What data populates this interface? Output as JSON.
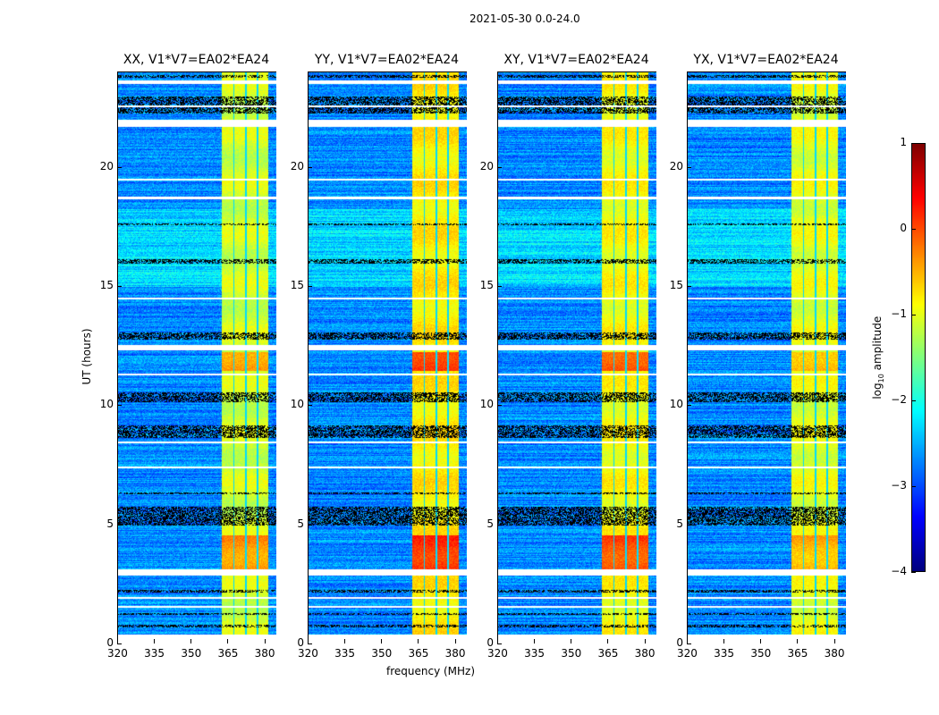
{
  "figure_title": "2021-05-30 0.0-24.0",
  "chart_data": [
    {
      "type": "heatmap",
      "title": "XX, V1*V7=EA02*EA24",
      "band_level": -1.1,
      "hot_level": -0.35,
      "band_start": 362
    },
    {
      "type": "heatmap",
      "title": "YY, V1*V7=EA02*EA24",
      "band_level": -0.8,
      "hot_level": 0.15,
      "band_start": 362
    },
    {
      "type": "heatmap",
      "title": "XY, V1*V7=EA02*EA24",
      "band_level": -0.9,
      "hot_level": 0.0,
      "band_start": 362
    },
    {
      "type": "heatmap",
      "title": "YX, V1*V7=EA02*EA24",
      "band_level": -1.0,
      "hot_level": -0.5,
      "band_start": 362
    }
  ],
  "shared": {
    "xlabel": "frequency (MHz)",
    "ylabel": "UT (hours)",
    "xlim": [
      320,
      384.5
    ],
    "ylim": [
      0,
      24
    ],
    "xticks": [
      "320",
      "335",
      "350",
      "365",
      "380"
    ],
    "xtick_values": [
      320,
      335,
      350,
      365,
      380
    ],
    "yticks": [
      "0",
      "5",
      "10",
      "15",
      "20"
    ],
    "ytick_values": [
      0,
      5,
      10,
      15,
      20
    ],
    "background_level": -2.7,
    "band_channel_edges_mhz": [
      367,
      372,
      376.5
    ],
    "band_end": 381,
    "hot_times_hours": [
      [
        3.0,
        4.6
      ],
      [
        11.5,
        12.3
      ]
    ],
    "flagged_times_hours": [
      [
        0,
        0.45
      ],
      [
        1.55,
        1.62
      ],
      [
        1.95,
        2.02
      ],
      [
        2.9,
        3.15
      ],
      [
        7.4,
        7.48
      ],
      [
        8.45,
        8.52
      ],
      [
        11.3,
        11.38
      ],
      [
        12.35,
        12.6
      ],
      [
        14.5,
        14.58
      ],
      [
        18.7,
        18.8
      ],
      [
        19.5,
        19.56
      ],
      [
        21.75,
        22.05
      ],
      [
        22.55,
        22.62
      ],
      [
        23.55,
        23.7
      ]
    ],
    "dropout_times_hours": [
      [
        0.75,
        0.85
      ],
      [
        1.25,
        1.32
      ],
      [
        2.2,
        2.3
      ],
      [
        5.0,
        5.8
      ],
      [
        6.3,
        6.4
      ],
      [
        8.7,
        9.2
      ],
      [
        10.2,
        10.6
      ],
      [
        12.8,
        13.1
      ],
      [
        16.0,
        16.2
      ],
      [
        17.6,
        17.7
      ],
      [
        22.3,
        23.0
      ],
      [
        23.8,
        23.9
      ]
    ]
  },
  "colorbar": {
    "label": "log10 amplitude",
    "label_base": "log",
    "label_sub": "10",
    "label_rest": " amplitude",
    "range": [
      -4,
      1
    ],
    "ticks": [
      "1",
      "0",
      "−1",
      "−2",
      "−3",
      "−4"
    ],
    "tick_values": [
      1,
      0,
      -1,
      -2,
      -3,
      -4
    ],
    "colormap": "jet"
  }
}
